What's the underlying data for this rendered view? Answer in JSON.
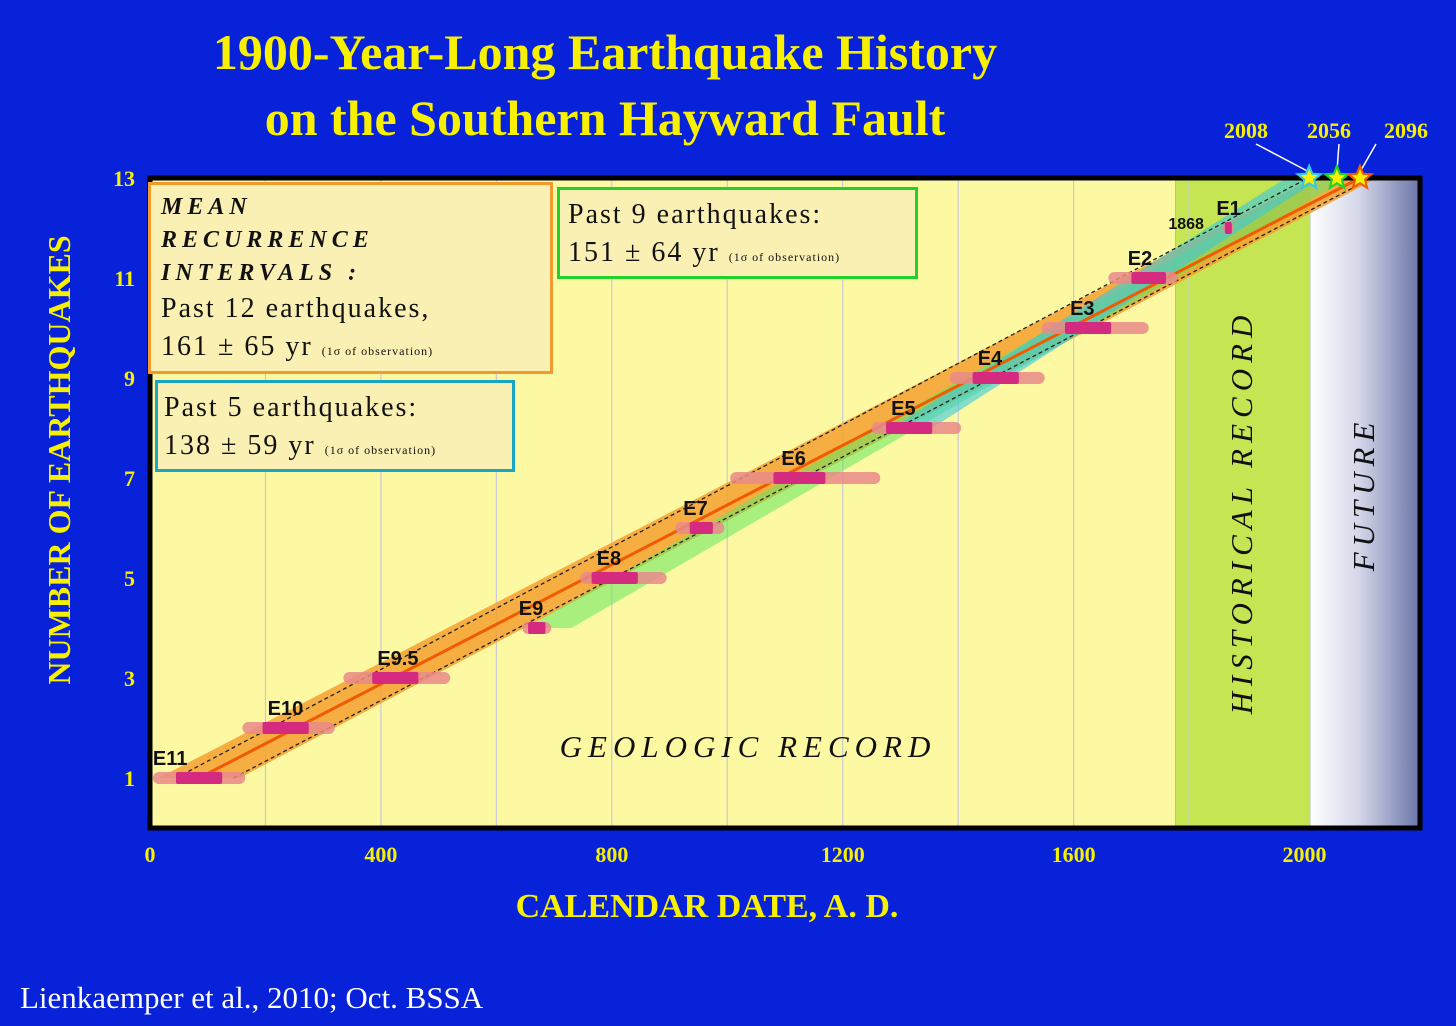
{
  "title_line1": "1900-Year-Long Earthquake History",
  "title_line2": "on the Southern Hayward Fault",
  "citation": "Lienkaemper et al.,  2010; Oct. BSSA",
  "boxes": {
    "mean": {
      "head1": "MEAN",
      "head2": "RECURRENCE",
      "head3": "INTERVALS :",
      "line1": "Past 12 earthquakes,",
      "line2": "161 ± 65 yr",
      "note": "(1σ of observation)"
    },
    "nine": {
      "line1": "Past 9 earthquakes:",
      "line2": "151 ± 64 yr",
      "note": "(1σ of observation)"
    },
    "five": {
      "line1": "Past 5 earthquakes:",
      "line2": "138 ± 59 yr",
      "note": "(1σ of observation)"
    }
  },
  "colors": {
    "background": "#0722d8",
    "title": "#f7f000",
    "geologic_region": "#fdf9a2",
    "historical_region": "#c6e553",
    "event_bar": "#d42a80",
    "event_bar_range": "#e98a8a",
    "fit_line": "#f05a00",
    "band_orange": "#f4a030",
    "band_green": "#62e860",
    "band_cyan": "#38c8e0"
  },
  "chart_data": {
    "type": "scatter",
    "title": "1900-Year-Long Earthquake History on the Southern Hayward Fault",
    "xlabel": "CALENDAR DATE, A. D.",
    "ylabel": "NUMBER OF EARTHQUAKES",
    "xlim": [
      0,
      2200
    ],
    "ylim": [
      0,
      13
    ],
    "x_ticks": [
      0,
      400,
      800,
      1200,
      1600,
      2000
    ],
    "y_ticks": [
      1,
      3,
      5,
      7,
      9,
      11,
      13
    ],
    "grid": "vertical",
    "regions": [
      {
        "label": "GEOLOGIC RECORD",
        "from": 0,
        "to": 1776
      },
      {
        "label": "HISTORICAL RECORD",
        "from": 1776,
        "to": 2010
      },
      {
        "label": "FUTURE",
        "from": 2010,
        "to": 2200
      }
    ],
    "events": [
      {
        "name": "E11",
        "count": 1,
        "year": 85,
        "low": 45,
        "high": 125,
        "wide_low": 5,
        "wide_high": 165
      },
      {
        "name": "E10",
        "count": 2,
        "year": 235,
        "low": 195,
        "high": 275,
        "wide_low": 160,
        "wide_high": 320
      },
      {
        "name": "E9.5",
        "count": 3,
        "year": 425,
        "low": 385,
        "high": 465,
        "wide_low": 335,
        "wide_high": 520
      },
      {
        "name": "E9",
        "count": 4,
        "year": 670,
        "low": 655,
        "high": 685,
        "wide_low": 645,
        "wide_high": 695
      },
      {
        "name": "E8",
        "count": 5,
        "year": 805,
        "low": 765,
        "high": 845,
        "wide_low": 745,
        "wide_high": 895
      },
      {
        "name": "E7",
        "count": 6,
        "year": 955,
        "low": 935,
        "high": 975,
        "wide_low": 910,
        "wide_high": 995
      },
      {
        "name": "E6",
        "count": 7,
        "year": 1125,
        "low": 1080,
        "high": 1170,
        "wide_low": 1005,
        "wide_high": 1265
      },
      {
        "name": "E5",
        "count": 8,
        "year": 1315,
        "low": 1275,
        "high": 1355,
        "wide_low": 1250,
        "wide_high": 1405
      },
      {
        "name": "E4",
        "count": 9,
        "year": 1465,
        "low": 1425,
        "high": 1505,
        "wide_low": 1385,
        "wide_high": 1550
      },
      {
        "name": "E3",
        "count": 10,
        "year": 1625,
        "low": 1585,
        "high": 1665,
        "wide_low": 1545,
        "wide_high": 1730
      },
      {
        "name": "E2",
        "count": 11,
        "year": 1725,
        "low": 1700,
        "high": 1760,
        "wide_low": 1660,
        "wide_high": 1780
      },
      {
        "name": "E1",
        "count": 12,
        "year": 1868,
        "low": 1862,
        "high": 1874,
        "wide_low": 1858,
        "wide_high": 1878,
        "label_year": "1868"
      }
    ],
    "forecasts": [
      {
        "year": 2008,
        "label": "2008",
        "color": "#38c8e0"
      },
      {
        "year": 2056,
        "label": "2056",
        "color": "#22d12a"
      },
      {
        "year": 2096,
        "label": "2096",
        "color": "#f05a00"
      }
    ]
  }
}
